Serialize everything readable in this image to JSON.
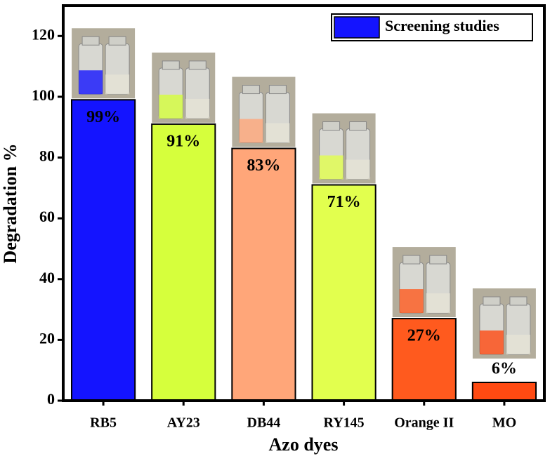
{
  "chart_data": {
    "type": "bar",
    "x_label": "Azo dyes",
    "y_label": "Degradation %",
    "categories": [
      "RB5",
      "AY23",
      "DB44",
      "RY145",
      "Orange II",
      "MO"
    ],
    "series": [
      {
        "name": "Screening studies",
        "color": "#1414ff",
        "colors": [
          "#1414ff",
          "#d6ff3c",
          "#ffa679",
          "#e2ff4e",
          "#ff5a1e",
          "#ff4a12"
        ],
        "values": [
          99,
          91,
          83,
          71,
          27,
          6
        ],
        "value_labels": [
          "99%",
          "91%",
          "83%",
          "71%",
          "27%",
          "6%"
        ]
      }
    ],
    "ylim": [
      0,
      130
    ],
    "yticks": [
      0,
      20,
      40,
      60,
      80,
      100,
      120
    ],
    "legend": "upper right"
  }
}
